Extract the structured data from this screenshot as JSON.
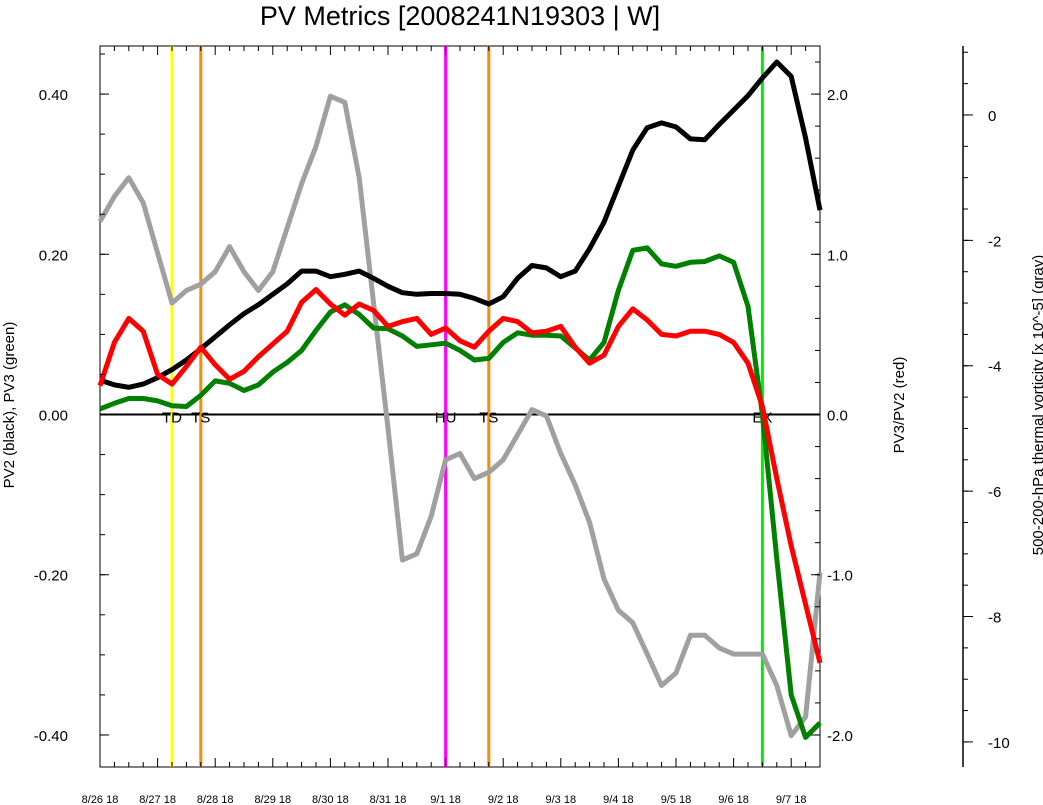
{
  "chart_data": {
    "type": "line",
    "title": "PV Metrics [2008241N19303 | W]",
    "x_tick_labels": [
      "8/26 18",
      "8/27 18",
      "8/28 18",
      "8/29 18",
      "8/30 18",
      "8/31 18",
      "9/1 18",
      "9/2 18",
      "9/3 18",
      "9/4 18",
      "9/5 18",
      "9/6 18",
      "9/7 18"
    ],
    "x_range_days": [
      0,
      12.5
    ],
    "axes": {
      "left": {
        "label": "PV2 (black), PV3 (green)",
        "range": [
          -0.44,
          0.46
        ],
        "ticks": [
          0.4,
          0.2,
          0.0,
          -0.2,
          -0.4
        ],
        "tick_labels": [
          "0.40",
          "0.20",
          "0.00",
          "-0.20",
          "-0.40"
        ]
      },
      "right": {
        "label": "PV3/PV2 (red)",
        "range": [
          -2.2,
          2.3
        ],
        "ticks": [
          2.0,
          1.0,
          0.0,
          -1.0,
          -2.0
        ],
        "tick_labels": [
          "2.0",
          "1.0",
          "0.0",
          "-1.0",
          "-2.0"
        ]
      },
      "far_right": {
        "label": "500-200-hPa thermal vorticity [x 10^-5] (gray)",
        "range": [
          -10.4,
          1.1
        ],
        "ticks": [
          0,
          -2,
          -4,
          -6,
          -8,
          -10
        ],
        "tick_labels": [
          "0",
          "-2",
          "-4",
          "-6",
          "-8",
          "-10"
        ]
      }
    },
    "zero_line": true,
    "markers": [
      {
        "label": "TD",
        "x": 1.25,
        "color": "#ffff00"
      },
      {
        "label": "TS",
        "x": 1.75,
        "color": "#ff8800"
      },
      {
        "label": "HU",
        "x": 6.0,
        "color": "#ff00ff"
      },
      {
        "label": "TS",
        "x": 6.75,
        "color": "#ff8800"
      },
      {
        "label": "EX",
        "x": 11.5,
        "color": "#00ee00"
      }
    ],
    "series": [
      {
        "name": "PV2",
        "axis": "left",
        "color": "#000000",
        "x": [
          0,
          0.25,
          0.5,
          0.75,
          1,
          1.25,
          1.5,
          1.75,
          2,
          2.25,
          2.5,
          2.75,
          3,
          3.25,
          3.5,
          3.75,
          4,
          4.25,
          4.5,
          4.75,
          5,
          5.25,
          5.5,
          5.75,
          6,
          6.25,
          6.5,
          6.75,
          7,
          7.25,
          7.5,
          7.75,
          8,
          8.25,
          8.5,
          8.75,
          9,
          9.25,
          9.5,
          9.75,
          10,
          10.25,
          10.5,
          10.75,
          11,
          11.25,
          11.5,
          11.75,
          12,
          12.25,
          12.5
        ],
        "values": [
          0.043,
          0.037,
          0.034,
          0.038,
          0.046,
          0.056,
          0.068,
          0.082,
          0.097,
          0.112,
          0.126,
          0.137,
          0.15,
          0.163,
          0.179,
          0.179,
          0.172,
          0.175,
          0.179,
          0.17,
          0.16,
          0.152,
          0.15,
          0.151,
          0.151,
          0.15,
          0.145,
          0.138,
          0.147,
          0.17,
          0.186,
          0.183,
          0.172,
          0.179,
          0.207,
          0.24,
          0.285,
          0.33,
          0.358,
          0.364,
          0.359,
          0.344,
          0.343,
          0.362,
          0.38,
          0.398,
          0.42,
          0.44,
          0.422,
          0.345,
          0.255
        ]
      },
      {
        "name": "PV3",
        "axis": "left",
        "color": "#008000",
        "x": [
          0,
          0.25,
          0.5,
          0.75,
          1,
          1.25,
          1.5,
          1.75,
          2,
          2.25,
          2.5,
          2.75,
          3,
          3.25,
          3.5,
          3.75,
          4,
          4.25,
          4.5,
          4.75,
          5,
          5.25,
          5.5,
          5.75,
          6,
          6.25,
          6.5,
          6.75,
          7,
          7.25,
          7.5,
          7.75,
          8,
          8.25,
          8.5,
          8.75,
          9,
          9.25,
          9.5,
          9.75,
          10,
          10.25,
          10.5,
          10.75,
          11,
          11.25,
          11.5,
          11.75,
          12,
          12.25,
          12.5
        ],
        "values": [
          0.007,
          0.014,
          0.02,
          0.02,
          0.017,
          0.011,
          0.01,
          0.024,
          0.042,
          0.039,
          0.03,
          0.037,
          0.053,
          0.065,
          0.08,
          0.105,
          0.128,
          0.137,
          0.125,
          0.108,
          0.107,
          0.098,
          0.085,
          0.087,
          0.089,
          0.08,
          0.068,
          0.07,
          0.09,
          0.102,
          0.099,
          0.099,
          0.098,
          0.083,
          0.068,
          0.09,
          0.155,
          0.205,
          0.208,
          0.188,
          0.185,
          0.19,
          0.191,
          0.198,
          0.19,
          0.135,
          0.0,
          -0.18,
          -0.35,
          -0.403,
          -0.385
        ]
      },
      {
        "name": "PV3/PV2",
        "axis": "right",
        "color": "#ff0000",
        "x": [
          0,
          0.25,
          0.5,
          0.75,
          1,
          1.25,
          1.5,
          1.75,
          2,
          2.25,
          2.5,
          2.75,
          3,
          3.25,
          3.5,
          3.75,
          4,
          4.25,
          4.5,
          4.75,
          5,
          5.25,
          5.5,
          5.75,
          6,
          6.25,
          6.5,
          6.75,
          7,
          7.25,
          7.5,
          7.75,
          8,
          8.25,
          8.5,
          8.75,
          9,
          9.25,
          9.5,
          9.75,
          10,
          10.25,
          10.5,
          10.75,
          11,
          11.25,
          11.5,
          11.75,
          12,
          12.5
        ],
        "values": [
          0.18,
          0.45,
          0.6,
          0.52,
          0.25,
          0.19,
          0.3,
          0.42,
          0.31,
          0.22,
          0.27,
          0.36,
          0.44,
          0.52,
          0.7,
          0.78,
          0.69,
          0.62,
          0.69,
          0.65,
          0.55,
          0.58,
          0.6,
          0.5,
          0.54,
          0.46,
          0.42,
          0.52,
          0.6,
          0.58,
          0.51,
          0.52,
          0.55,
          0.42,
          0.32,
          0.37,
          0.55,
          0.66,
          0.59,
          0.5,
          0.49,
          0.52,
          0.52,
          0.5,
          0.45,
          0.32,
          0.05,
          -0.4,
          -0.82,
          -1.55
        ]
      },
      {
        "name": "thermal vorticity",
        "axis": "far_right",
        "color": "#a0a0a0",
        "x": [
          0,
          0.25,
          0.5,
          0.75,
          1,
          1.25,
          1.5,
          1.75,
          2,
          2.25,
          2.5,
          2.75,
          3,
          3.25,
          3.5,
          3.75,
          4,
          4.25,
          4.5,
          4.75,
          5,
          5.25,
          5.5,
          5.75,
          6,
          6.25,
          6.5,
          6.75,
          7,
          7.25,
          7.5,
          7.75,
          8,
          8.25,
          8.5,
          8.75,
          9,
          9.25,
          9.5,
          9.75,
          10,
          10.25,
          10.5,
          10.75,
          11,
          11.25,
          11.5,
          11.75,
          12,
          12.25,
          12.5
        ],
        "values": [
          -1.7,
          -1.3,
          -1.0,
          -1.4,
          -2.2,
          -3,
          -2.8,
          -2.7,
          -2.5,
          -2.1,
          -2.5,
          -2.8,
          -2.5,
          -1.8,
          -1.1,
          -0.5,
          0.3,
          0.2,
          -1.0,
          -3.0,
          -5.0,
          -7.1,
          -7.0,
          -6.4,
          -5.5,
          -5.4,
          -5.8,
          -5.7,
          -5.5,
          -5.1,
          -4.7,
          -4.8,
          -5.4,
          -5.9,
          -6.5,
          -7.4,
          -7.9,
          -8.1,
          -8.6,
          -9.1,
          -8.9,
          -8.3,
          -8.3,
          -8.5,
          -8.6,
          -8.6,
          -8.6,
          -9.1,
          -9.9,
          -9.6,
          -7.3
        ]
      }
    ]
  }
}
